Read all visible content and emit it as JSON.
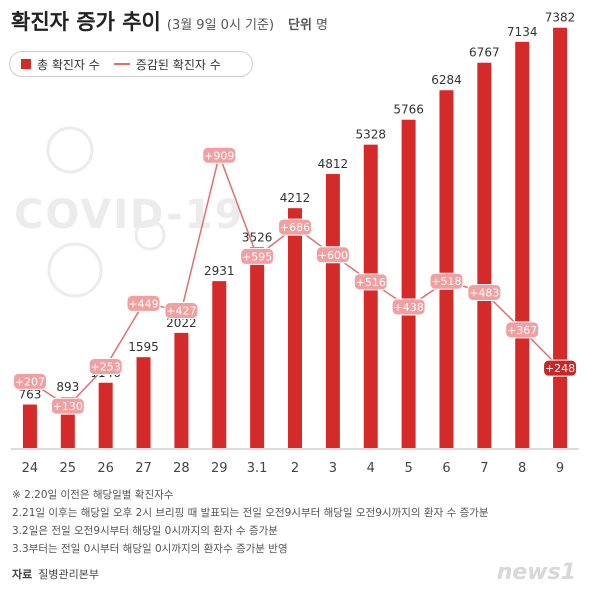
{
  "header": {
    "title": "확진자 증가 추이",
    "subtitle": "(3월 9일 0시 기준)",
    "unit_label": "단위",
    "unit_value": "명"
  },
  "legend": {
    "bar_label": "총 확진자 수",
    "line_label": "증감된 확진자 수"
  },
  "watermark": "COVID-19",
  "colors": {
    "bar": "#d42a2a",
    "line": "#e07070",
    "label_box": "#f0a0a0",
    "label_box_dark": "#c62828"
  },
  "chart_data": {
    "type": "bar",
    "categories": [
      "24",
      "25",
      "26",
      "27",
      "28",
      "29",
      "3.1",
      "2",
      "3",
      "4",
      "5",
      "6",
      "7",
      "8",
      "9"
    ],
    "series": [
      {
        "name": "총 확진자 수",
        "type": "bar",
        "values": [
          763,
          893,
          1146,
          1595,
          2022,
          2931,
          3526,
          4212,
          4812,
          5328,
          5766,
          6284,
          6767,
          7134,
          7382
        ]
      },
      {
        "name": "증감된 확진자 수",
        "type": "line",
        "values": [
          207,
          130,
          253,
          449,
          427,
          909,
          595,
          686,
          600,
          516,
          438,
          518,
          483,
          367,
          248
        ],
        "labels": [
          "+207",
          "+130",
          "+253",
          "+449",
          "+427",
          "+909",
          "+595",
          "+686",
          "+600",
          "+516",
          "+438",
          "+518",
          "+483",
          "+367",
          "+248"
        ]
      }
    ],
    "ylim": [
      0,
      7500
    ]
  },
  "notes": [
    "※ 2.20일 이전은 해당일별 확진자수",
    "2.21일 이후는 해당일 오후 2시 브리핑 때 발표되는 전일 오전9시부터 해당일 오전9시까지의 환자 수 증가분",
    "3.2일은 전일 오전9시부터 해당일 0시까지의 환자 수 증가분",
    "3.3부터는 전일 0시부터 해당일 0시까지의 환자수 증가분 반영"
  ],
  "source": {
    "label": "자료",
    "value": "질병관리본부"
  },
  "logo": "news1"
}
